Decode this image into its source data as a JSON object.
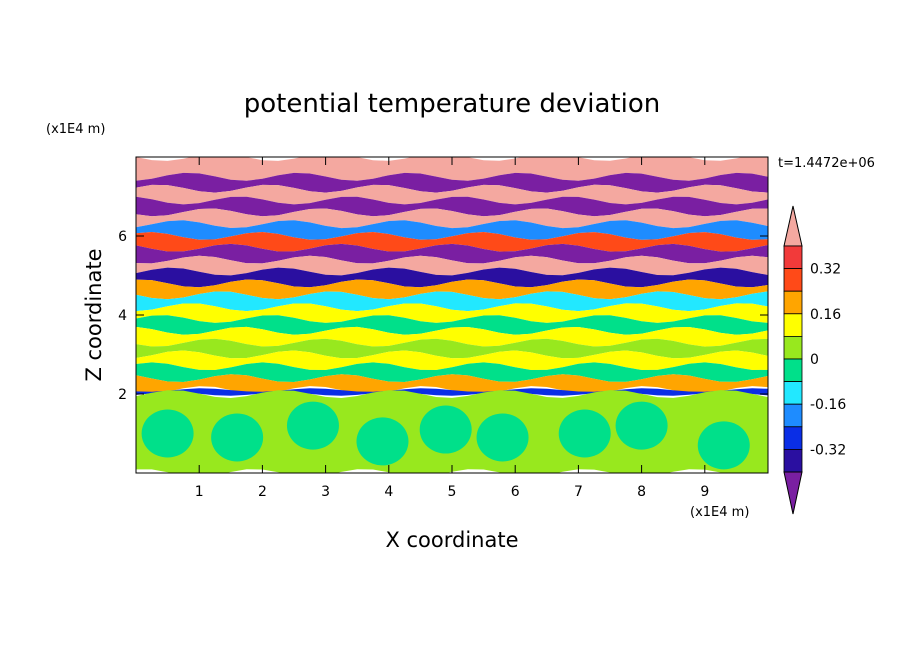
{
  "chart_data": {
    "type": "heatmap",
    "title": "potential temperature deviation",
    "xlabel": "X coordinate",
    "ylabel": "Z coordinate",
    "x_unit": "(x1E4 m)",
    "y_unit": "(x1E4 m)",
    "time_label": "t=1.4472e+06",
    "x_ticks": [
      "1",
      "2",
      "3",
      "4",
      "5",
      "6",
      "7",
      "8",
      "9"
    ],
    "y_ticks": [
      "2",
      "4",
      "6"
    ],
    "xlim": [
      0,
      10
    ],
    "ylim": [
      0,
      8
    ],
    "colorbar": {
      "labels": [
        "0.32",
        "0.16",
        "0",
        "-0.16",
        "-0.32"
      ],
      "label_values": [
        0.32,
        0.16,
        0,
        -0.16,
        -0.32
      ],
      "levels": [
        -0.4,
        -0.32,
        -0.24,
        -0.16,
        -0.08,
        0,
        0.08,
        0.16,
        0.24,
        0.32,
        0.4
      ],
      "colors": [
        "#7a1fa2",
        "#2a0fa0",
        "#0a2ee6",
        "#1e8cff",
        "#22e8ff",
        "#00e08a",
        "#98e81e",
        "#ffff00",
        "#ffa500",
        "#ff4a18",
        "#f23a3a",
        "#f4a8a0"
      ],
      "over_color": "#f4a8a0",
      "under_color": "#7a1fa2"
    },
    "field_bands": [
      {
        "z": [
          7.5,
          8.0
        ],
        "value": 0.45
      },
      {
        "z": [
          7.2,
          7.5
        ],
        "value": -0.45
      },
      {
        "z": [
          6.9,
          7.2
        ],
        "value": 0.45
      },
      {
        "z": [
          6.6,
          6.9
        ],
        "value": -0.45
      },
      {
        "z": [
          6.3,
          6.6
        ],
        "value": 0.45
      },
      {
        "z": [
          6.0,
          6.3
        ],
        "value": -0.2
      },
      {
        "z": [
          5.7,
          6.0
        ],
        "value": 0.3
      },
      {
        "z": [
          5.4,
          5.7
        ],
        "value": -0.45
      },
      {
        "z": [
          5.1,
          5.4
        ],
        "value": 0.45
      },
      {
        "z": [
          4.8,
          5.1
        ],
        "value": -0.35
      },
      {
        "z": [
          4.5,
          4.8
        ],
        "value": 0.2
      },
      {
        "z": [
          4.2,
          4.5
        ],
        "value": -0.1
      },
      {
        "z": [
          3.9,
          4.2
        ],
        "value": 0.1
      },
      {
        "z": [
          3.6,
          3.9
        ],
        "value": -0.05
      },
      {
        "z": [
          3.3,
          3.6
        ],
        "value": 0.15
      },
      {
        "z": [
          3.0,
          3.3
        ],
        "value": 0.0
      },
      {
        "z": [
          2.7,
          3.0
        ],
        "value": 0.12
      },
      {
        "z": [
          2.4,
          2.7
        ],
        "value": -0.08
      },
      {
        "z": [
          2.1,
          2.4
        ],
        "value": 0.18
      },
      {
        "z": [
          2.0,
          2.1
        ],
        "value": -0.3
      },
      {
        "z": [
          0.0,
          2.0
        ],
        "value": 0.04
      }
    ],
    "lower_patches": [
      {
        "x": 0.5,
        "z": 1.0,
        "value": -0.02
      },
      {
        "x": 1.6,
        "z": 0.9,
        "value": -0.02
      },
      {
        "x": 2.8,
        "z": 1.2,
        "value": -0.02
      },
      {
        "x": 3.9,
        "z": 0.8,
        "value": -0.02
      },
      {
        "x": 4.9,
        "z": 1.1,
        "value": -0.02
      },
      {
        "x": 5.8,
        "z": 0.9,
        "value": -0.02
      },
      {
        "x": 7.1,
        "z": 1.0,
        "value": -0.02
      },
      {
        "x": 8.0,
        "z": 1.2,
        "value": -0.02
      },
      {
        "x": 9.3,
        "z": 0.7,
        "value": -0.02
      }
    ]
  }
}
